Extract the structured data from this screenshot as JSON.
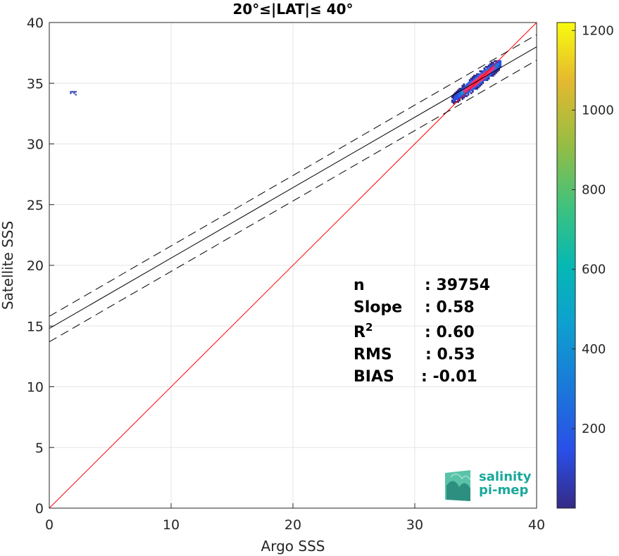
{
  "chart_data": {
    "type": "heatmap",
    "title": "20°≤|LAT|≤ 40°",
    "xlabel": "Argo SSS",
    "ylabel": "Satellite SSS",
    "xlim": [
      0,
      40
    ],
    "ylim": [
      0,
      40
    ],
    "x_ticks": [
      "0",
      "10",
      "20",
      "30",
      "40"
    ],
    "y_ticks": [
      "0",
      "5",
      "10",
      "15",
      "20",
      "25",
      "30",
      "35",
      "40"
    ],
    "grid": true,
    "colorbar": {
      "colormap": "parula",
      "range": [
        0,
        1220
      ],
      "ticks": [
        "200",
        "400",
        "600",
        "800",
        "1000",
        "1200"
      ]
    },
    "lines": [
      {
        "role": "identity",
        "color": "#ff0000",
        "style": "solid",
        "slope": 1,
        "intercept": 0
      },
      {
        "role": "regression",
        "color": "#000000",
        "style": "solid",
        "slope": 0.58,
        "intercept": 14.8
      },
      {
        "role": "regression-upper",
        "color": "#000000",
        "style": "dashed",
        "slope": 0.58,
        "intercept": 15.8
      },
      {
        "role": "regression-lower",
        "color": "#000000",
        "style": "dashed",
        "slope": 0.58,
        "intercept": 13.7
      }
    ],
    "density_clusters": [
      {
        "x_range": [
          33,
          37
        ],
        "y_range": [
          33.3,
          36.8
        ],
        "peak": 1200
      },
      {
        "x_range": [
          1.7,
          2.2
        ],
        "y_range": [
          34.0,
          34.3
        ],
        "peak": 60
      }
    ],
    "stats": [
      {
        "label": "n",
        "value": ": 39754"
      },
      {
        "label": "Slope",
        "value": ": 0.58"
      },
      {
        "label": "R",
        "sup": "2",
        "value": ": 0.60"
      },
      {
        "label": "RMS",
        "value": ": 0.53"
      },
      {
        "label": "BIAS",
        "value": ": -0.01"
      }
    ]
  },
  "logo": {
    "line1": "salinity",
    "line2": "pi-mep",
    "color": "#1aa89a"
  }
}
